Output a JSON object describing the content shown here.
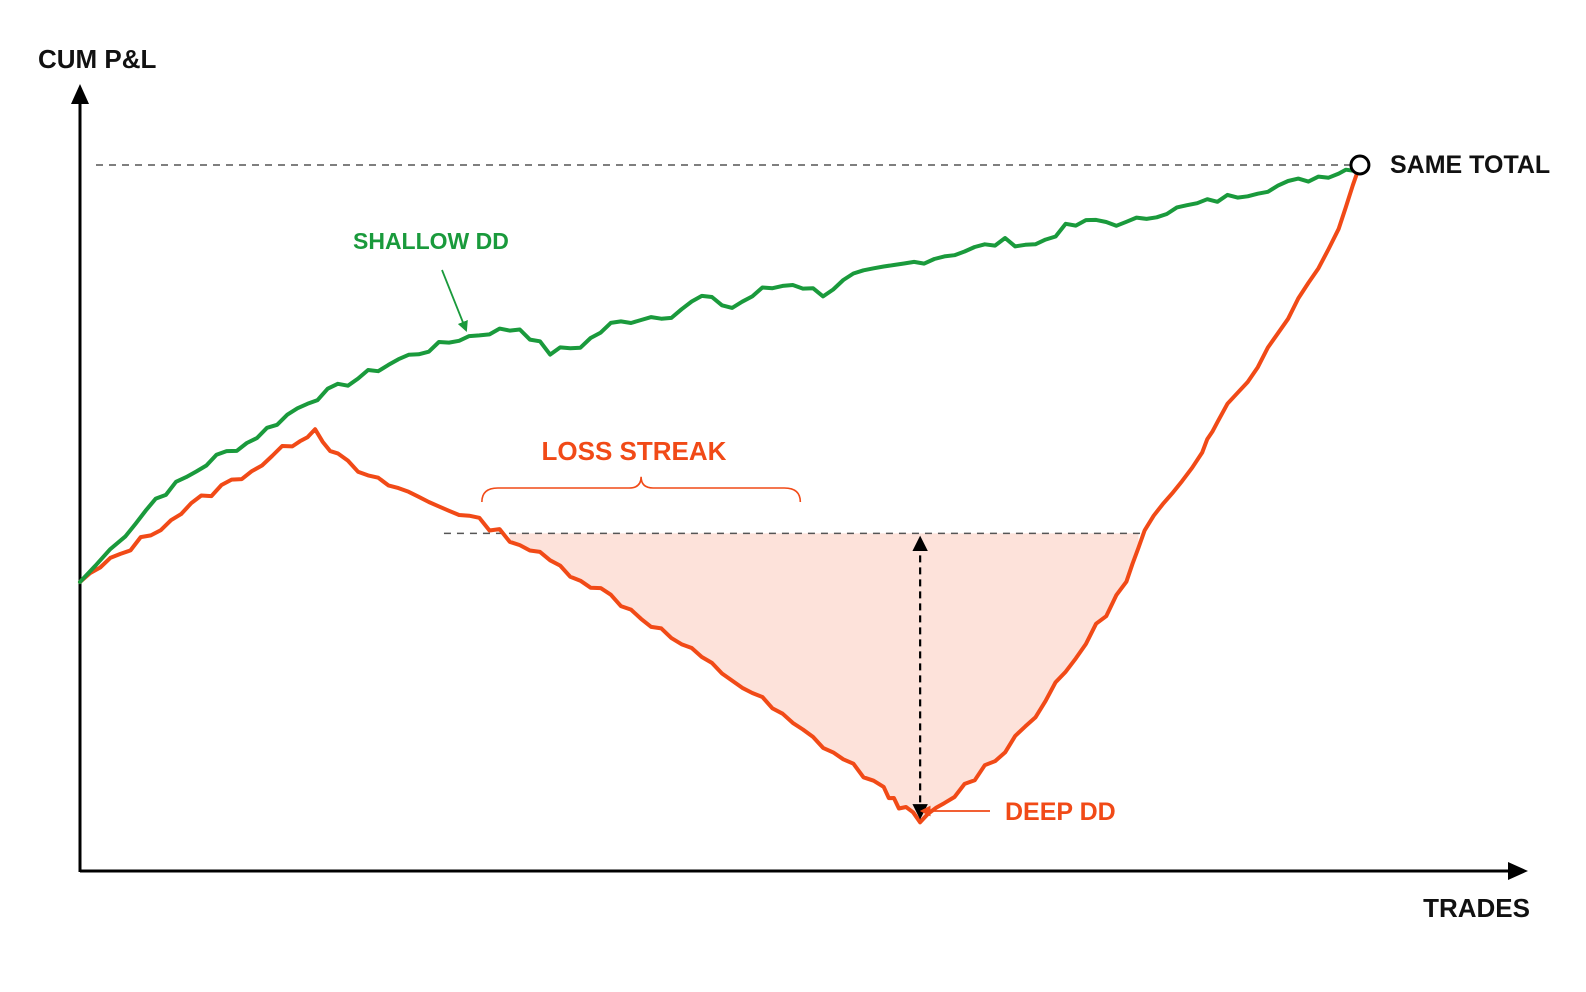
{
  "chart_data": {
    "type": "line",
    "title": "",
    "xlabel": "TRADES",
    "ylabel": "CUM P&L",
    "xlim": [
      0,
      100
    ],
    "ylim": [
      0,
      100
    ],
    "grid": false,
    "legend": "none",
    "series": [
      {
        "name": "SHALLOW DD",
        "color": "#1a9a3c",
        "points": [
          [
            0,
            40
          ],
          [
            3,
            47
          ],
          [
            5,
            52
          ],
          [
            7,
            55
          ],
          [
            9,
            58
          ],
          [
            11,
            60
          ],
          [
            13,
            63
          ],
          [
            15,
            66
          ],
          [
            17,
            68
          ],
          [
            19,
            70
          ],
          [
            21,
            72
          ],
          [
            23,
            73.5
          ],
          [
            25,
            75
          ],
          [
            27,
            76
          ],
          [
            29,
            76.5
          ],
          [
            31,
            73
          ],
          [
            33,
            74
          ],
          [
            35,
            77
          ],
          [
            37,
            78
          ],
          [
            39,
            78.5
          ],
          [
            41,
            81
          ],
          [
            43,
            79.5
          ],
          [
            45,
            82
          ],
          [
            47,
            83
          ],
          [
            49,
            81.5
          ],
          [
            51,
            84
          ],
          [
            53,
            85
          ],
          [
            55,
            86
          ],
          [
            57,
            87
          ],
          [
            59,
            88
          ],
          [
            61,
            89
          ],
          [
            63,
            88.5
          ],
          [
            65,
            91
          ],
          [
            67,
            92
          ],
          [
            69,
            91.5
          ],
          [
            71,
            93
          ],
          [
            73,
            94
          ],
          [
            75,
            95
          ],
          [
            77,
            96
          ],
          [
            79,
            97
          ],
          [
            81,
            98
          ],
          [
            83,
            99
          ],
          [
            84.4,
            100
          ]
        ]
      },
      {
        "name": "DEEP DD",
        "color": "#f14a17",
        "points": [
          [
            0,
            40
          ],
          [
            2,
            43
          ],
          [
            4,
            46
          ],
          [
            6,
            49
          ],
          [
            8,
            52
          ],
          [
            10,
            54.5
          ],
          [
            12,
            57
          ],
          [
            14,
            60
          ],
          [
            15.5,
            62
          ],
          [
            17,
            58
          ],
          [
            19,
            55
          ],
          [
            21,
            53.5
          ],
          [
            23,
            51.5
          ],
          [
            25,
            50
          ],
          [
            27,
            48
          ],
          [
            29,
            45.5
          ],
          [
            31,
            43
          ],
          [
            33,
            40.5
          ],
          [
            35,
            38
          ],
          [
            37,
            35
          ],
          [
            39,
            32
          ],
          [
            41,
            29
          ],
          [
            43,
            26
          ],
          [
            45,
            23
          ],
          [
            47,
            19.5
          ],
          [
            49,
            16.5
          ],
          [
            51,
            13.5
          ],
          [
            53,
            10
          ],
          [
            54,
            8
          ],
          [
            55.4,
            5.5
          ],
          [
            57,
            8
          ],
          [
            59,
            12
          ],
          [
            61,
            16
          ],
          [
            63,
            21
          ],
          [
            65,
            27
          ],
          [
            67,
            33.5
          ],
          [
            69,
            40
          ],
          [
            70.2,
            47
          ],
          [
            72,
            53
          ],
          [
            74,
            59
          ],
          [
            75,
            63.5
          ],
          [
            77,
            69
          ],
          [
            79,
            76
          ],
          [
            81,
            83
          ],
          [
            83,
            91
          ],
          [
            84.4,
            100
          ]
        ]
      }
    ],
    "annotations": {
      "shallow_label": "SHALLOW DD",
      "deep_label": "DEEP DD",
      "loss_streak_label": "LOSS STREAK",
      "same_total_label": "SAME TOTAL",
      "same_total_value": 100,
      "drawdown_peak_level": 47,
      "drawdown_trough_level": 5.5,
      "drawdown_trough_x": 55.4,
      "loss_streak_range": [
        26.5,
        47.5
      ]
    }
  }
}
